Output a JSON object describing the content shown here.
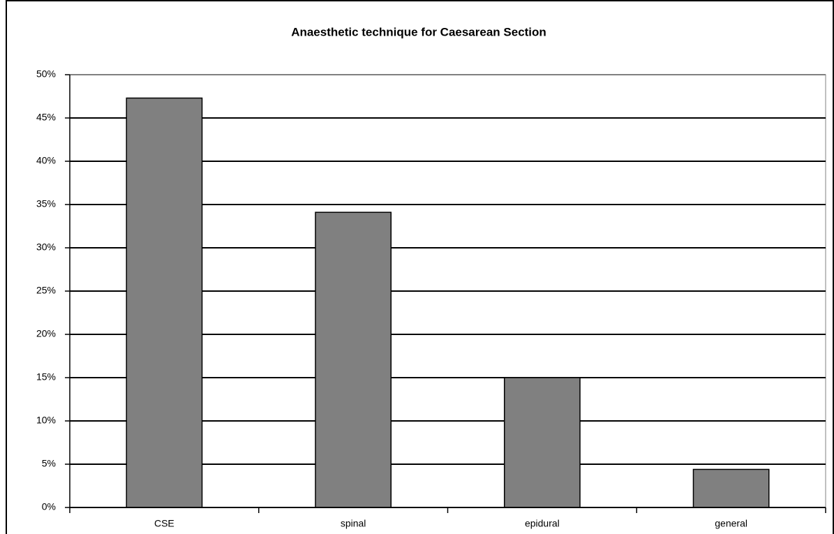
{
  "chart_data": {
    "type": "bar",
    "title": "Anaesthetic technique for Caesarean Section",
    "categories": [
      "CSE",
      "spinal",
      "epidural",
      "general"
    ],
    "values": [
      47.3,
      34.1,
      15.0,
      4.4
    ],
    "color": "#808080",
    "ylim": [
      0,
      50
    ],
    "yticks": [
      {
        "value": 0,
        "label": "0%"
      },
      {
        "value": 5,
        "label": "5%"
      },
      {
        "value": 10,
        "label": "10%"
      },
      {
        "value": 15,
        "label": "15%"
      },
      {
        "value": 20,
        "label": "20%"
      },
      {
        "value": 25,
        "label": "25%"
      },
      {
        "value": 30,
        "label": "30%"
      },
      {
        "value": 35,
        "label": "35%"
      },
      {
        "value": 40,
        "label": "40%"
      },
      {
        "value": 45,
        "label": "45%"
      },
      {
        "value": 50,
        "label": "50%"
      }
    ],
    "grid": true
  }
}
